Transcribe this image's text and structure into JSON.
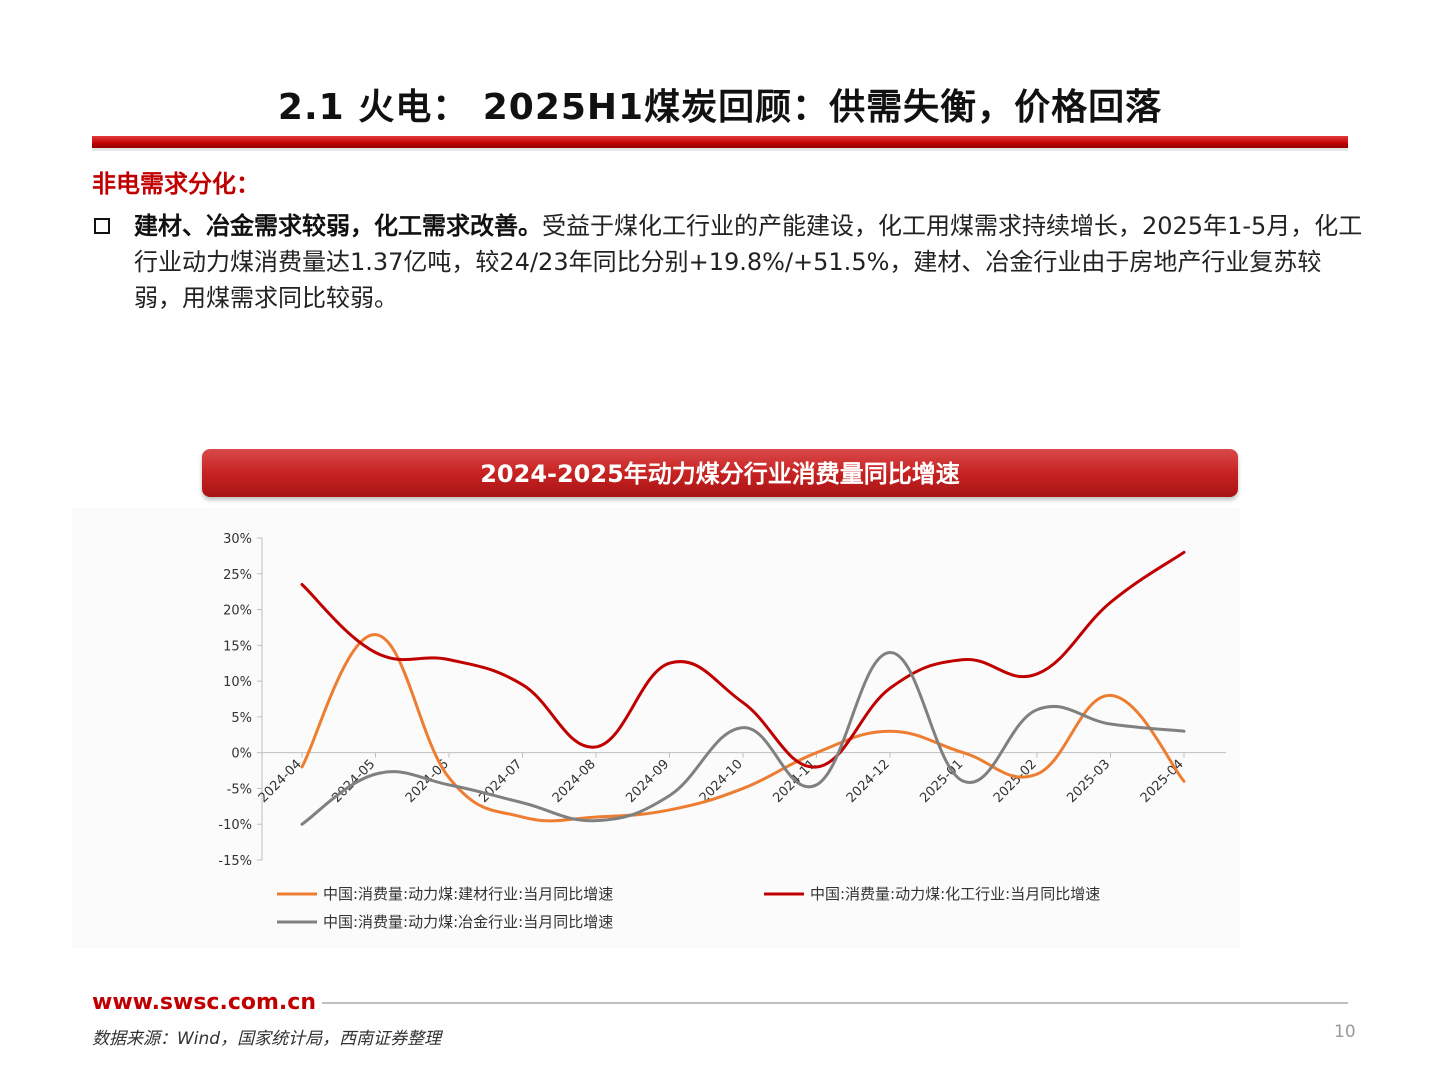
{
  "header": {
    "title": "2.1 火电： 2025H1煤炭回顾：供需失衡，价格回落"
  },
  "section": {
    "subtitle": "非电需求分化：",
    "bullet_bold": "建材、冶金需求较弱，化工需求改善。",
    "bullet_text": "受益于煤化工行业的产能建设，化工用煤需求持续增长，2025年1-5月，化工行业动力煤消费量达1.37亿吨，较24/23年同比分别+19.8%/+51.5%，建材、冶金行业由于房地产行业复苏较弱，用煤需求同比较弱。"
  },
  "chart_title": "2024-2025年动力煤分行业消费量同比增速",
  "chart_data": {
    "type": "line",
    "categories": [
      "2024-04",
      "2024-05",
      "2024-06",
      "2024-07",
      "2024-08",
      "2024-09",
      "2024-10",
      "2024-11",
      "2024-12",
      "2025-01",
      "2025-02",
      "2025-03",
      "2025-04"
    ],
    "ylim": [
      -15,
      30
    ],
    "yticks": [
      -15,
      -10,
      -5,
      0,
      5,
      10,
      15,
      20,
      25,
      30
    ],
    "ytick_labels": [
      "-15%",
      "-10%",
      "-5%",
      "0%",
      "5%",
      "10%",
      "15%",
      "20%",
      "25%",
      "30%"
    ],
    "grid": false,
    "legend_position": "bottom",
    "series": [
      {
        "name": "中国:消费量:动力煤:建材行业:当月同比增速",
        "color": "#ed7d31",
        "values": [
          -2.0,
          16.5,
          -3.5,
          -9.0,
          -9.0,
          -8.0,
          -5.0,
          0.0,
          3.0,
          0.0,
          -3.0,
          8.0,
          -4.0
        ]
      },
      {
        "name": "中国:消费量:动力煤:化工行业:当月同比增速",
        "color": "#c00000",
        "values": [
          23.5,
          14.0,
          13.0,
          9.5,
          0.8,
          12.5,
          7.0,
          -2.0,
          9.0,
          13.0,
          11.0,
          21.0,
          28.0
        ]
      },
      {
        "name": "中国:消费量:动力煤:冶金行业:当月同比增速",
        "color": "#808080",
        "values": [
          -10.0,
          -3.0,
          -4.5,
          -7.0,
          -9.5,
          -6.0,
          3.5,
          -4.5,
          14.0,
          -4.0,
          6.0,
          4.0,
          3.0
        ]
      }
    ]
  },
  "footer": {
    "website": "www.swsc.com.cn",
    "source": "数据来源：Wind，国家统计局，西南证券整理",
    "page": "10"
  }
}
